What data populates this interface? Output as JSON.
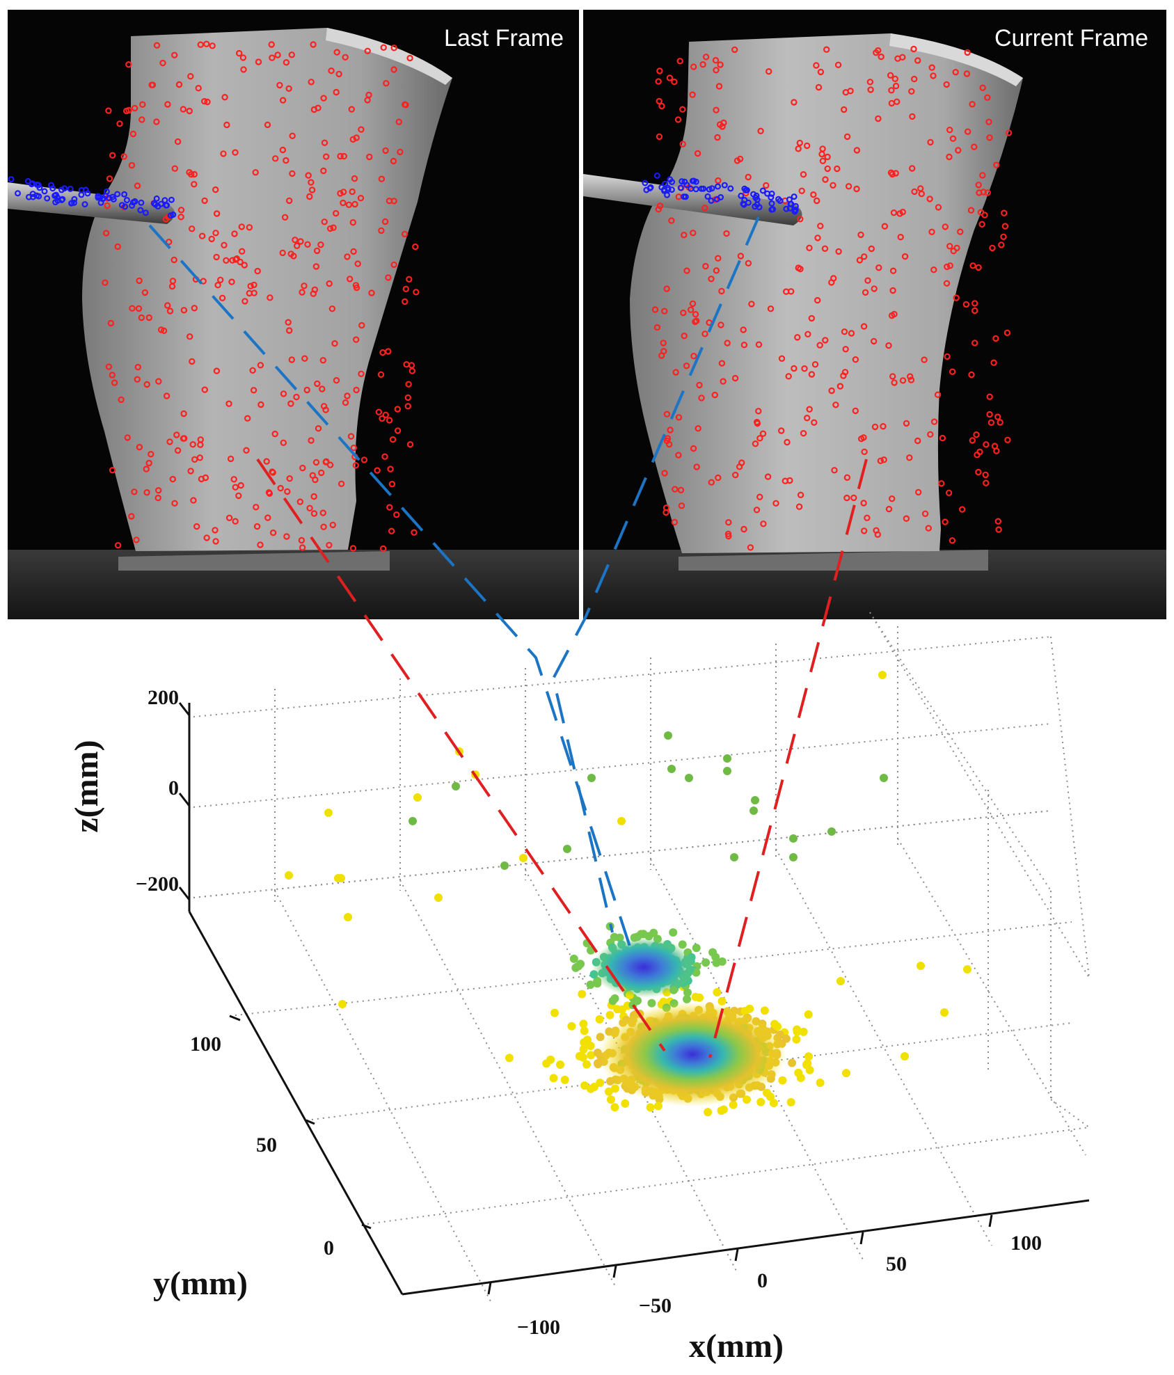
{
  "figure": {
    "left_panel_caption": "Last Frame",
    "right_panel_caption": "Current Frame"
  },
  "chart_data": {
    "type": "scatter",
    "title": "",
    "projection": "3d",
    "xlabel": "x(mm)",
    "ylabel": "y(mm)",
    "zlabel": "z(mm)",
    "x_ticks": [
      "−100",
      "−50",
      "0",
      "50",
      "100"
    ],
    "y_ticks": [
      "0",
      "50",
      "100"
    ],
    "z_ticks": [
      "200",
      "0",
      "−200"
    ],
    "grid": true,
    "grid_style": "dotted",
    "clusters": [
      {
        "label": "tool-tip cluster",
        "center": {
          "x": -12,
          "y": 110,
          "z": 0
        },
        "color_scale": [
          "#3a3ee0",
          "#2fa6c6",
          "#42c494",
          "#78c850"
        ],
        "outlier_color": "#6fba45"
      },
      {
        "label": "tissue cluster",
        "center": {
          "x": -10,
          "y": 70,
          "z": -30
        },
        "color_scale": [
          "#3a3ee0",
          "#2fa6c6",
          "#8cc84a",
          "#e8c230",
          "#f2e000"
        ],
        "outlier_color": "#f0e000"
      }
    ],
    "correspondence_lines": [
      {
        "color": "#1b74c4",
        "from": "tool tip in Last Frame",
        "to": "tool-tip cluster"
      },
      {
        "color": "#1b74c4",
        "from": "tool tip in Current Frame",
        "to": "tool-tip cluster"
      },
      {
        "color": "#e02020",
        "from": "tissue point in Last Frame",
        "to": "tissue cluster"
      },
      {
        "color": "#e02020",
        "from": "tissue point in Current Frame",
        "to": "tissue cluster"
      }
    ],
    "marker_colors": {
      "tissue_features": "#ff2020",
      "tool_features": "#1a1aff"
    }
  }
}
